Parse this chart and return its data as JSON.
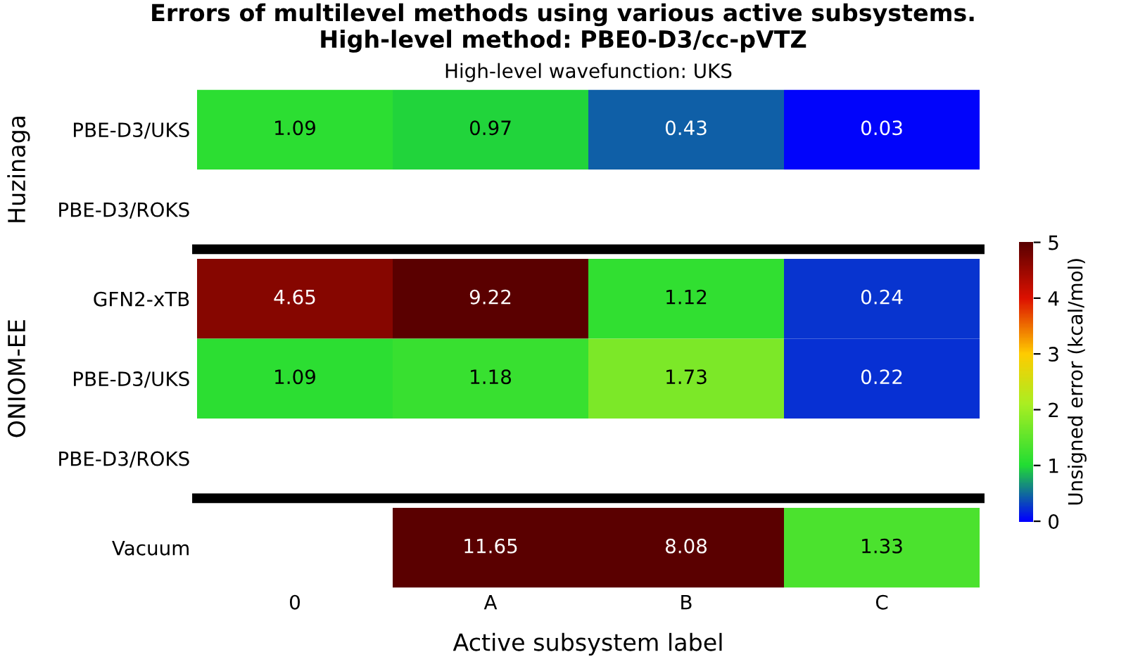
{
  "chart_data": [
    {
      "type": "heatmap",
      "title": "Errors of multilevel methods using various active subsystems.\nHigh-level method: PBE0-D3/cc-pVTZ",
      "subtitle": "High-level wavefunction: UKS",
      "ylabel": "Huzinaga",
      "categories": [
        null,
        null,
        null,
        null
      ],
      "y_categories": [
        "PBE-D3/UKS",
        "PBE-D3/ROKS"
      ],
      "cells": [
        [
          1.09,
          0.97,
          0.43,
          0.03
        ],
        [
          null,
          null,
          null,
          null
        ]
      ],
      "data_labels": true,
      "tick_labels": "y"
    },
    {
      "type": "heatmap",
      "ylabel": "ONIOM-EE",
      "categories": [
        null,
        null,
        null,
        null
      ],
      "y_categories": [
        "GFN2-xTB",
        "PBE-D3/UKS",
        "PBE-D3/ROKS"
      ],
      "cells": [
        [
          4.65,
          9.22,
          1.12,
          0.24
        ],
        [
          1.09,
          1.18,
          1.73,
          0.22
        ],
        [
          null,
          null,
          null,
          null
        ]
      ],
      "clim": [
        0,
        5
      ],
      "cticks": [
        0,
        1,
        2,
        3,
        4,
        5
      ],
      "clabel": "Unsigned error (kcal/mol)",
      "data_labels": true,
      "tick_labels": "y"
    },
    {
      "type": "heatmap",
      "xlabel": "Active subsystem label",
      "categories": [
        "0",
        "A",
        "B",
        "C"
      ],
      "y_categories": [
        "Vacuum"
      ],
      "cells": [
        [
          null,
          11.65,
          8.08,
          1.33
        ]
      ],
      "data_labels": true
    }
  ]
}
